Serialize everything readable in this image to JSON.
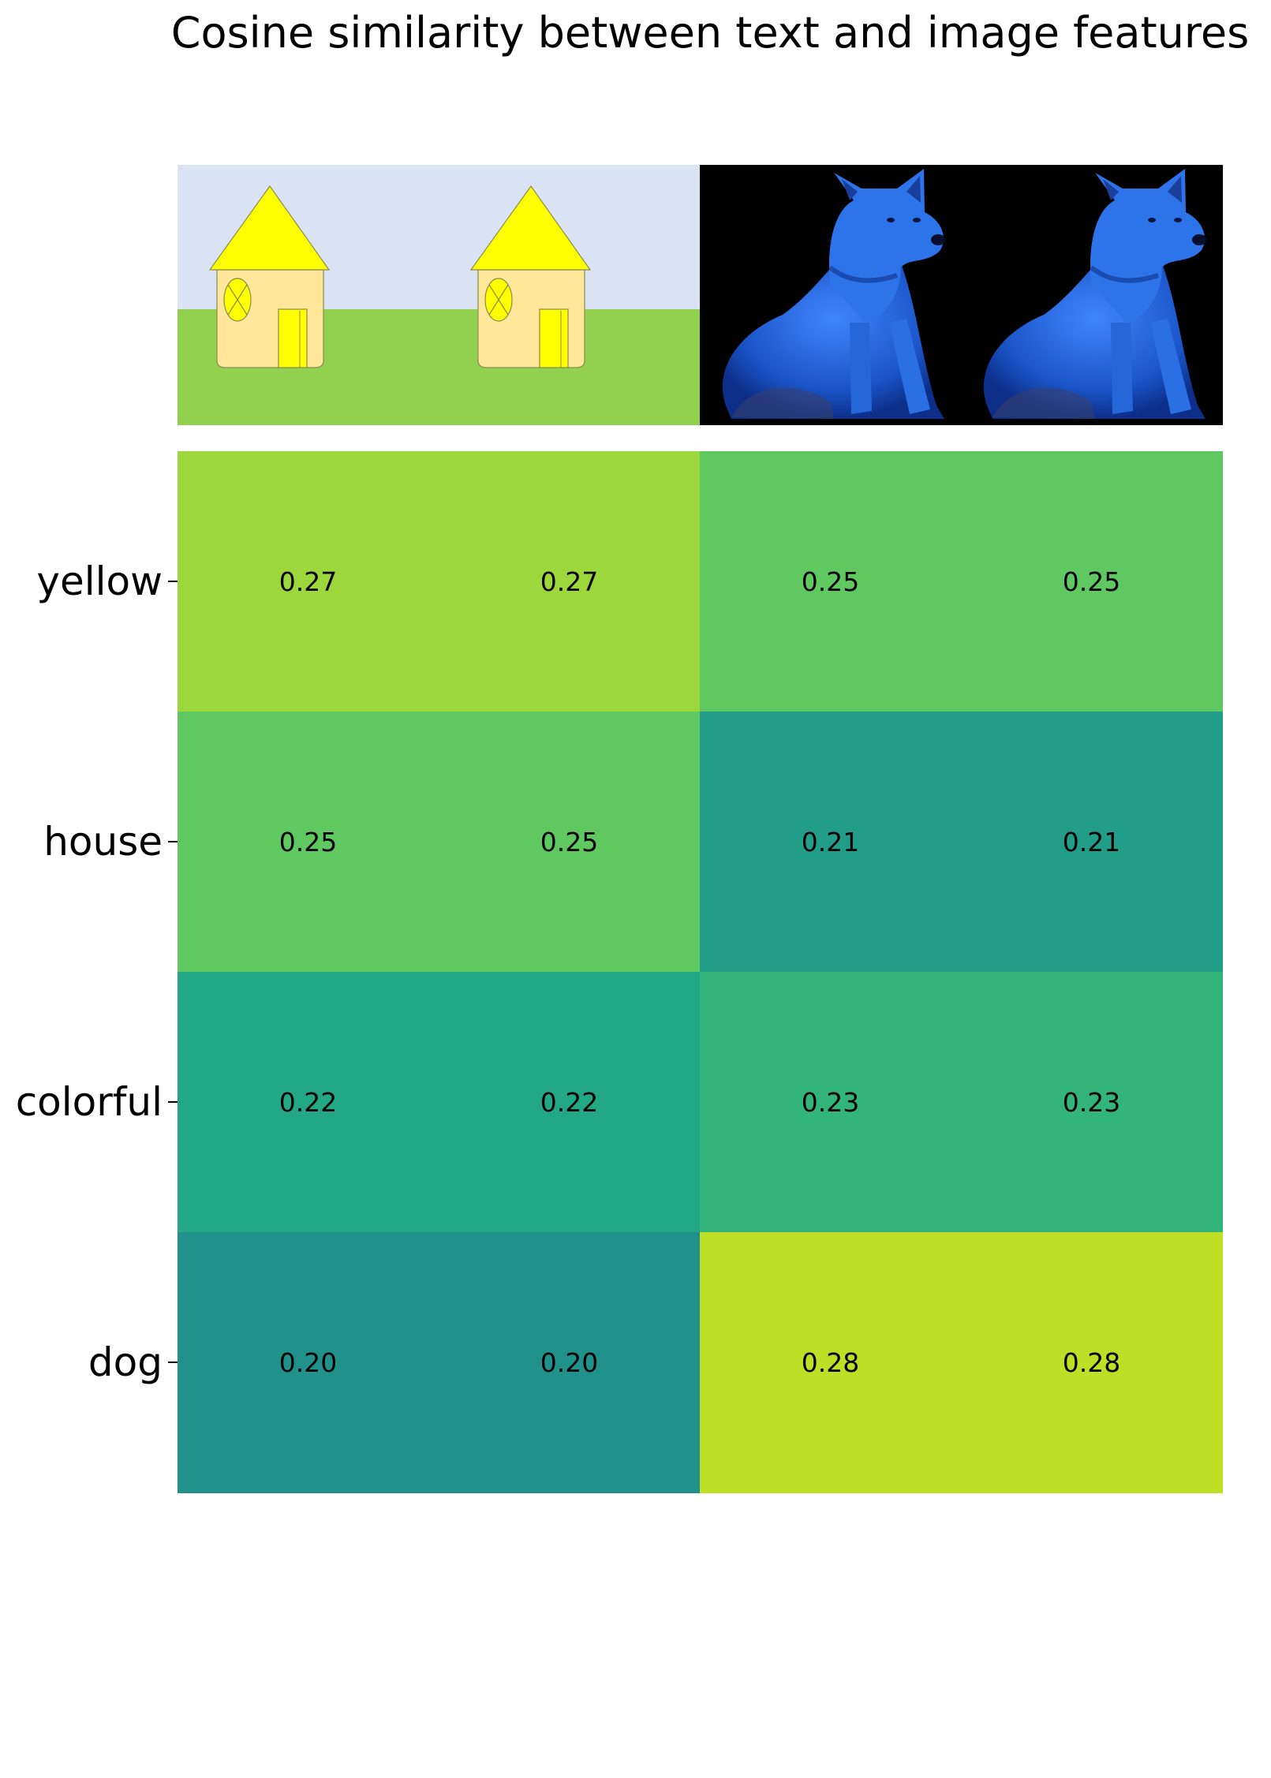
{
  "chart_data": {
    "type": "heatmap",
    "title": "Cosine similarity between text and image features",
    "rows": [
      "yellow",
      "house",
      "colorful",
      "dog"
    ],
    "columns": [
      "yellow house image 1",
      "yellow house image 2",
      "blue dog image 1",
      "blue dog image 2"
    ],
    "values": [
      [
        0.27,
        0.27,
        0.25,
        0.25
      ],
      [
        0.25,
        0.25,
        0.21,
        0.21
      ],
      [
        0.22,
        0.22,
        0.23,
        0.23
      ],
      [
        0.2,
        0.2,
        0.28,
        0.28
      ]
    ],
    "value_labels": [
      [
        "0.27",
        "0.27",
        "0.25",
        "0.25"
      ],
      [
        "0.25",
        "0.25",
        "0.21",
        "0.21"
      ],
      [
        "0.22",
        "0.22",
        "0.23",
        "0.23"
      ],
      [
        "0.20",
        "0.20",
        "0.28",
        "0.28"
      ]
    ],
    "colormap": "viridis",
    "value_range": [
      0.1,
      0.3
    ],
    "grid": false,
    "legend": "none"
  },
  "colors": {
    "house_sky": "#dae3f3",
    "house_grass": "#92d050",
    "house_roof": "#ffff00",
    "house_wall": "#ffe699",
    "dog_background": "#000000",
    "dog_body": "#1f5fd0"
  }
}
